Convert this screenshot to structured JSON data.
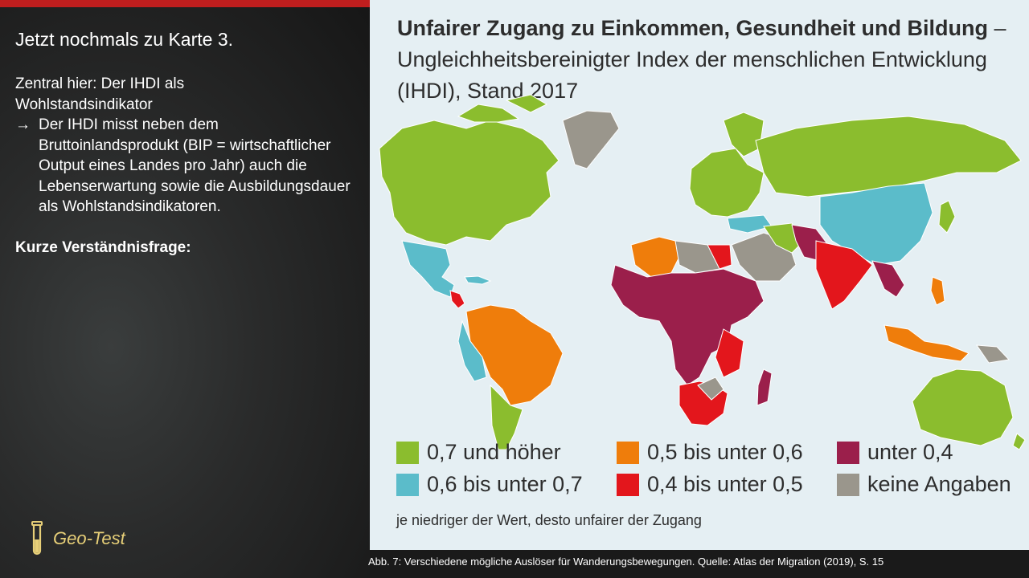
{
  "slide": {
    "title": "Jetzt nochmals zu Karte 3.",
    "intro_line1": "Zentral hier:  Der IHDI als",
    "intro_line2": "Wohlstandsindikator",
    "bullet_arrow": "→",
    "bullet_text": "Der IHDI misst neben dem Bruttoinlandsprodukt  (BIP = wirtschaftlicher Output eines Landes pro Jahr) auch die Lebenserwartung sowie die Ausbildungsdauer als Wohlstandsindikatoren.",
    "question": "Kurze Verständnisfrage:",
    "badge_label": "Geo-Test",
    "badge_icon": "test-tube-icon"
  },
  "map": {
    "title_bold": "Unfairer Zugang zu Einkommen, Gesundheit und Bildung",
    "title_rest": " – Ungleichheitsbereinigter Index der menschlichen Entwicklung (IHDI), Stand 2017",
    "legend": [
      {
        "label": "0,7 und höher",
        "color": "#8bbd2e"
      },
      {
        "label": "0,5 bis unter 0,6",
        "color": "#ef7d0b"
      },
      {
        "label": "unter 0,4",
        "color": "#9b1f4b"
      },
      {
        "label": "0,6 bis unter 0,7",
        "color": "#5bbcca"
      },
      {
        "label": "0,4 bis unter 0,5",
        "color": "#e3161c"
      },
      {
        "label": "keine Angaben",
        "color": "#9a968c"
      }
    ],
    "note": "je niedriger der Wert, desto unfairer der Zugang",
    "ocean_color": "#e5eff3"
  },
  "caption": "Abb. 7: Verschiedene mögliche Auslöser für Wanderungsbewegungen. Quelle: Atlas der Migration (2019), S. 15"
}
